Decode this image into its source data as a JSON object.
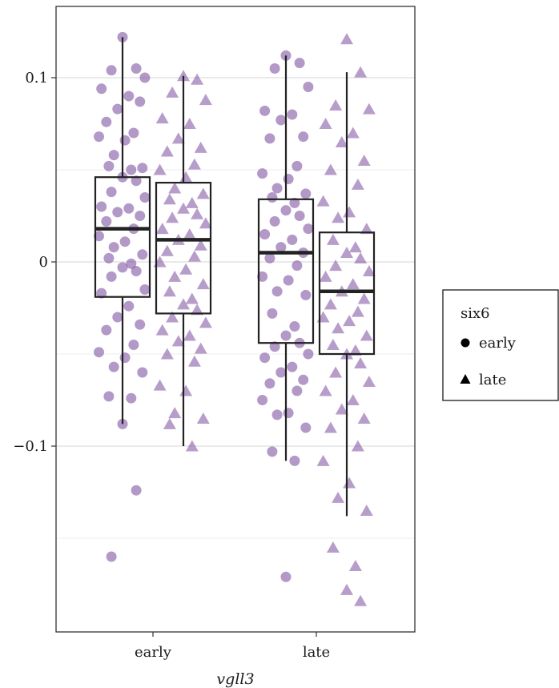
{
  "chart_data": {
    "type": "box",
    "title": "",
    "xlabel": "vgll3",
    "ylabel": "",
    "ylim": [
      -0.19,
      0.134
    ],
    "x_categories": [
      "early",
      "late"
    ],
    "y_ticks": [
      0.1,
      0,
      -0.1
    ],
    "y_tick_labels": [
      "0.1",
      "0",
      "−0.1"
    ],
    "minor_gridlines": [
      0.05,
      -0.05,
      -0.15
    ],
    "grid": true,
    "point_color": "#7b4f9e",
    "legend": {
      "title": "six6",
      "position": "right",
      "entries": [
        {
          "label": "early",
          "shape": "circle"
        },
        {
          "label": "late",
          "shape": "triangle"
        }
      ]
    },
    "series": [
      {
        "vgll3": "early",
        "six6": "early",
        "shape": "circle",
        "box": {
          "whisker_low": -0.088,
          "q1": -0.019,
          "median": 0.018,
          "q3": 0.046,
          "whisker_high": 0.122
        },
        "points": [
          0.122,
          0.105,
          0.104,
          0.1,
          0.094,
          0.09,
          0.083,
          0.087,
          0.076,
          0.07,
          0.068,
          0.066,
          0.058,
          0.051,
          0.052,
          0.05,
          0.046,
          0.044,
          0.038,
          0.035,
          0.03,
          0.029,
          0.027,
          0.025,
          0.022,
          0.018,
          0.014,
          0.011,
          0.008,
          0.004,
          0.002,
          -0.001,
          -0.003,
          -0.005,
          -0.008,
          -0.015,
          -0.017,
          -0.024,
          -0.03,
          -0.034,
          -0.037,
          -0.045,
          -0.049,
          -0.052,
          -0.057,
          -0.06,
          -0.073,
          -0.074,
          -0.088,
          -0.124,
          -0.16
        ]
      },
      {
        "vgll3": "early",
        "six6": "late",
        "shape": "triangle",
        "box": {
          "whisker_low": -0.1,
          "q1": -0.028,
          "median": 0.012,
          "q3": 0.043,
          "whisker_high": 0.101
        },
        "points": [
          0.101,
          0.099,
          0.092,
          0.088,
          0.078,
          0.075,
          0.067,
          0.062,
          0.06,
          0.053,
          0.05,
          0.046,
          0.04,
          0.037,
          0.034,
          0.032,
          0.029,
          0.026,
          0.024,
          0.021,
          0.018,
          0.015,
          0.012,
          0.009,
          0.006,
          0.003,
          0.0,
          -0.004,
          -0.008,
          -0.012,
          -0.016,
          -0.02,
          -0.023,
          -0.026,
          -0.03,
          -0.033,
          -0.037,
          -0.04,
          -0.043,
          -0.047,
          -0.05,
          -0.054,
          -0.067,
          -0.07,
          -0.082,
          -0.085,
          -0.088,
          -0.1
        ]
      },
      {
        "vgll3": "late",
        "six6": "early",
        "shape": "circle",
        "box": {
          "whisker_low": -0.108,
          "q1": -0.044,
          "median": 0.005,
          "q3": 0.034,
          "whisker_high": 0.112
        },
        "points": [
          0.112,
          0.108,
          0.105,
          0.095,
          0.082,
          0.08,
          0.077,
          0.068,
          0.067,
          0.052,
          0.048,
          0.045,
          0.04,
          0.037,
          0.035,
          0.032,
          0.028,
          0.025,
          0.022,
          0.018,
          0.015,
          0.012,
          0.008,
          0.005,
          0.002,
          -0.002,
          -0.008,
          -0.01,
          -0.016,
          -0.018,
          -0.028,
          -0.035,
          -0.04,
          -0.044,
          -0.046,
          -0.05,
          -0.052,
          -0.057,
          -0.06,
          -0.064,
          -0.066,
          -0.07,
          -0.075,
          -0.082,
          -0.083,
          -0.09,
          -0.103,
          -0.108,
          -0.171
        ]
      },
      {
        "vgll3": "late",
        "six6": "late",
        "shape": "triangle",
        "box": {
          "whisker_low": -0.138,
          "q1": -0.05,
          "median": -0.016,
          "q3": 0.016,
          "whisker_high": 0.103
        },
        "points": [
          0.121,
          0.103,
          0.085,
          0.083,
          0.075,
          0.07,
          0.065,
          0.055,
          0.05,
          0.042,
          0.033,
          0.027,
          0.024,
          0.018,
          0.012,
          0.008,
          0.005,
          0.002,
          -0.002,
          -0.005,
          -0.008,
          -0.012,
          -0.016,
          -0.02,
          -0.023,
          -0.027,
          -0.03,
          -0.032,
          -0.036,
          -0.04,
          -0.045,
          -0.048,
          -0.05,
          -0.055,
          -0.06,
          -0.065,
          -0.07,
          -0.075,
          -0.08,
          -0.085,
          -0.09,
          -0.1,
          -0.108,
          -0.12,
          -0.128,
          -0.135,
          -0.155,
          -0.165,
          -0.178,
          -0.184
        ]
      }
    ]
  }
}
